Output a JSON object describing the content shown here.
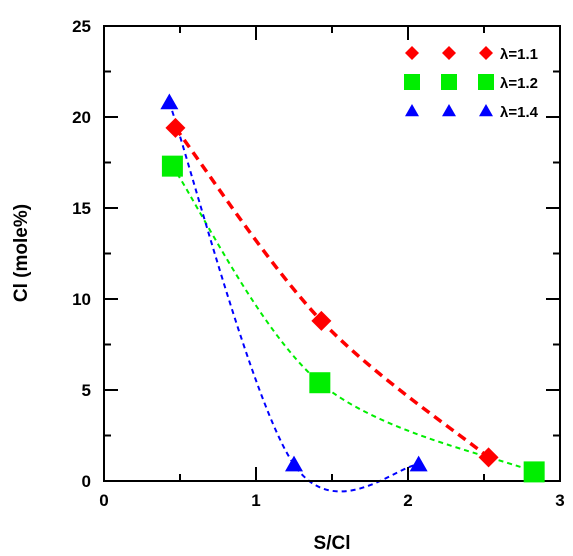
{
  "chart_data": {
    "type": "scatter",
    "xlabel": "S/Cl",
    "ylabel": "Cl (mole%)",
    "xlim": [
      0,
      3
    ],
    "ylim": [
      0,
      25
    ],
    "x_ticks": [
      "0",
      "1",
      "2",
      "3"
    ],
    "y_ticks": [
      "0",
      "5",
      "10",
      "15",
      "20",
      "25"
    ],
    "grid": false,
    "legend_position": "top-right",
    "series": [
      {
        "name": "λ=1.1",
        "marker": "diamond",
        "color": "#ff0000",
        "x": [
          0.47,
          1.43,
          2.53
        ],
        "y": [
          19.4,
          8.8,
          1.3
        ]
      },
      {
        "name": "λ=1.2",
        "marker": "square",
        "color": "#00ee00",
        "x": [
          0.45,
          1.42,
          2.83
        ],
        "y": [
          17.3,
          5.4,
          0.5
        ]
      },
      {
        "name": "λ=1.4",
        "marker": "triangle",
        "color": "#0000ff",
        "x": [
          0.43,
          1.25,
          2.07
        ],
        "y": [
          20.8,
          0.9,
          0.9
        ]
      }
    ]
  }
}
